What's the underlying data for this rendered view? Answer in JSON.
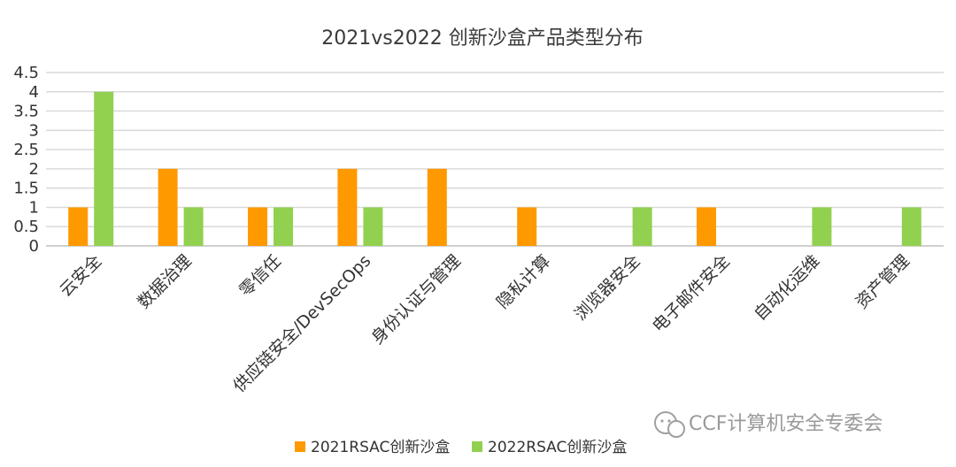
{
  "chart_data": {
    "type": "bar",
    "title": "2021vs2022 创新沙盒产品类型分布",
    "categories": [
      "云安全",
      "数据治理",
      "零信任",
      "供应链安全/DevSecOps",
      "身份认证与管理",
      "隐私计算",
      "浏览器安全",
      "电子邮件安全",
      "自动化运维",
      "资产管理"
    ],
    "series": [
      {
        "name": "2021RSAC创新沙盒",
        "color": "#ff9900",
        "values": [
          1,
          2,
          1,
          2,
          2,
          1,
          0,
          1,
          0,
          0
        ]
      },
      {
        "name": "2022RSAC创新沙盒",
        "color": "#92d050",
        "values": [
          4,
          1,
          1,
          1,
          0,
          0,
          1,
          0,
          1,
          1
        ]
      }
    ],
    "ylim": [
      0,
      4.5
    ],
    "yticks": [
      "0",
      "0.5",
      "1",
      "1.5",
      "2",
      "2.5",
      "3",
      "3.5",
      "4",
      "4.5"
    ],
    "grid": true,
    "legend": "bottom"
  },
  "watermark": "CCF计算机安全专委会",
  "watermark_icon": "wechat-icon"
}
